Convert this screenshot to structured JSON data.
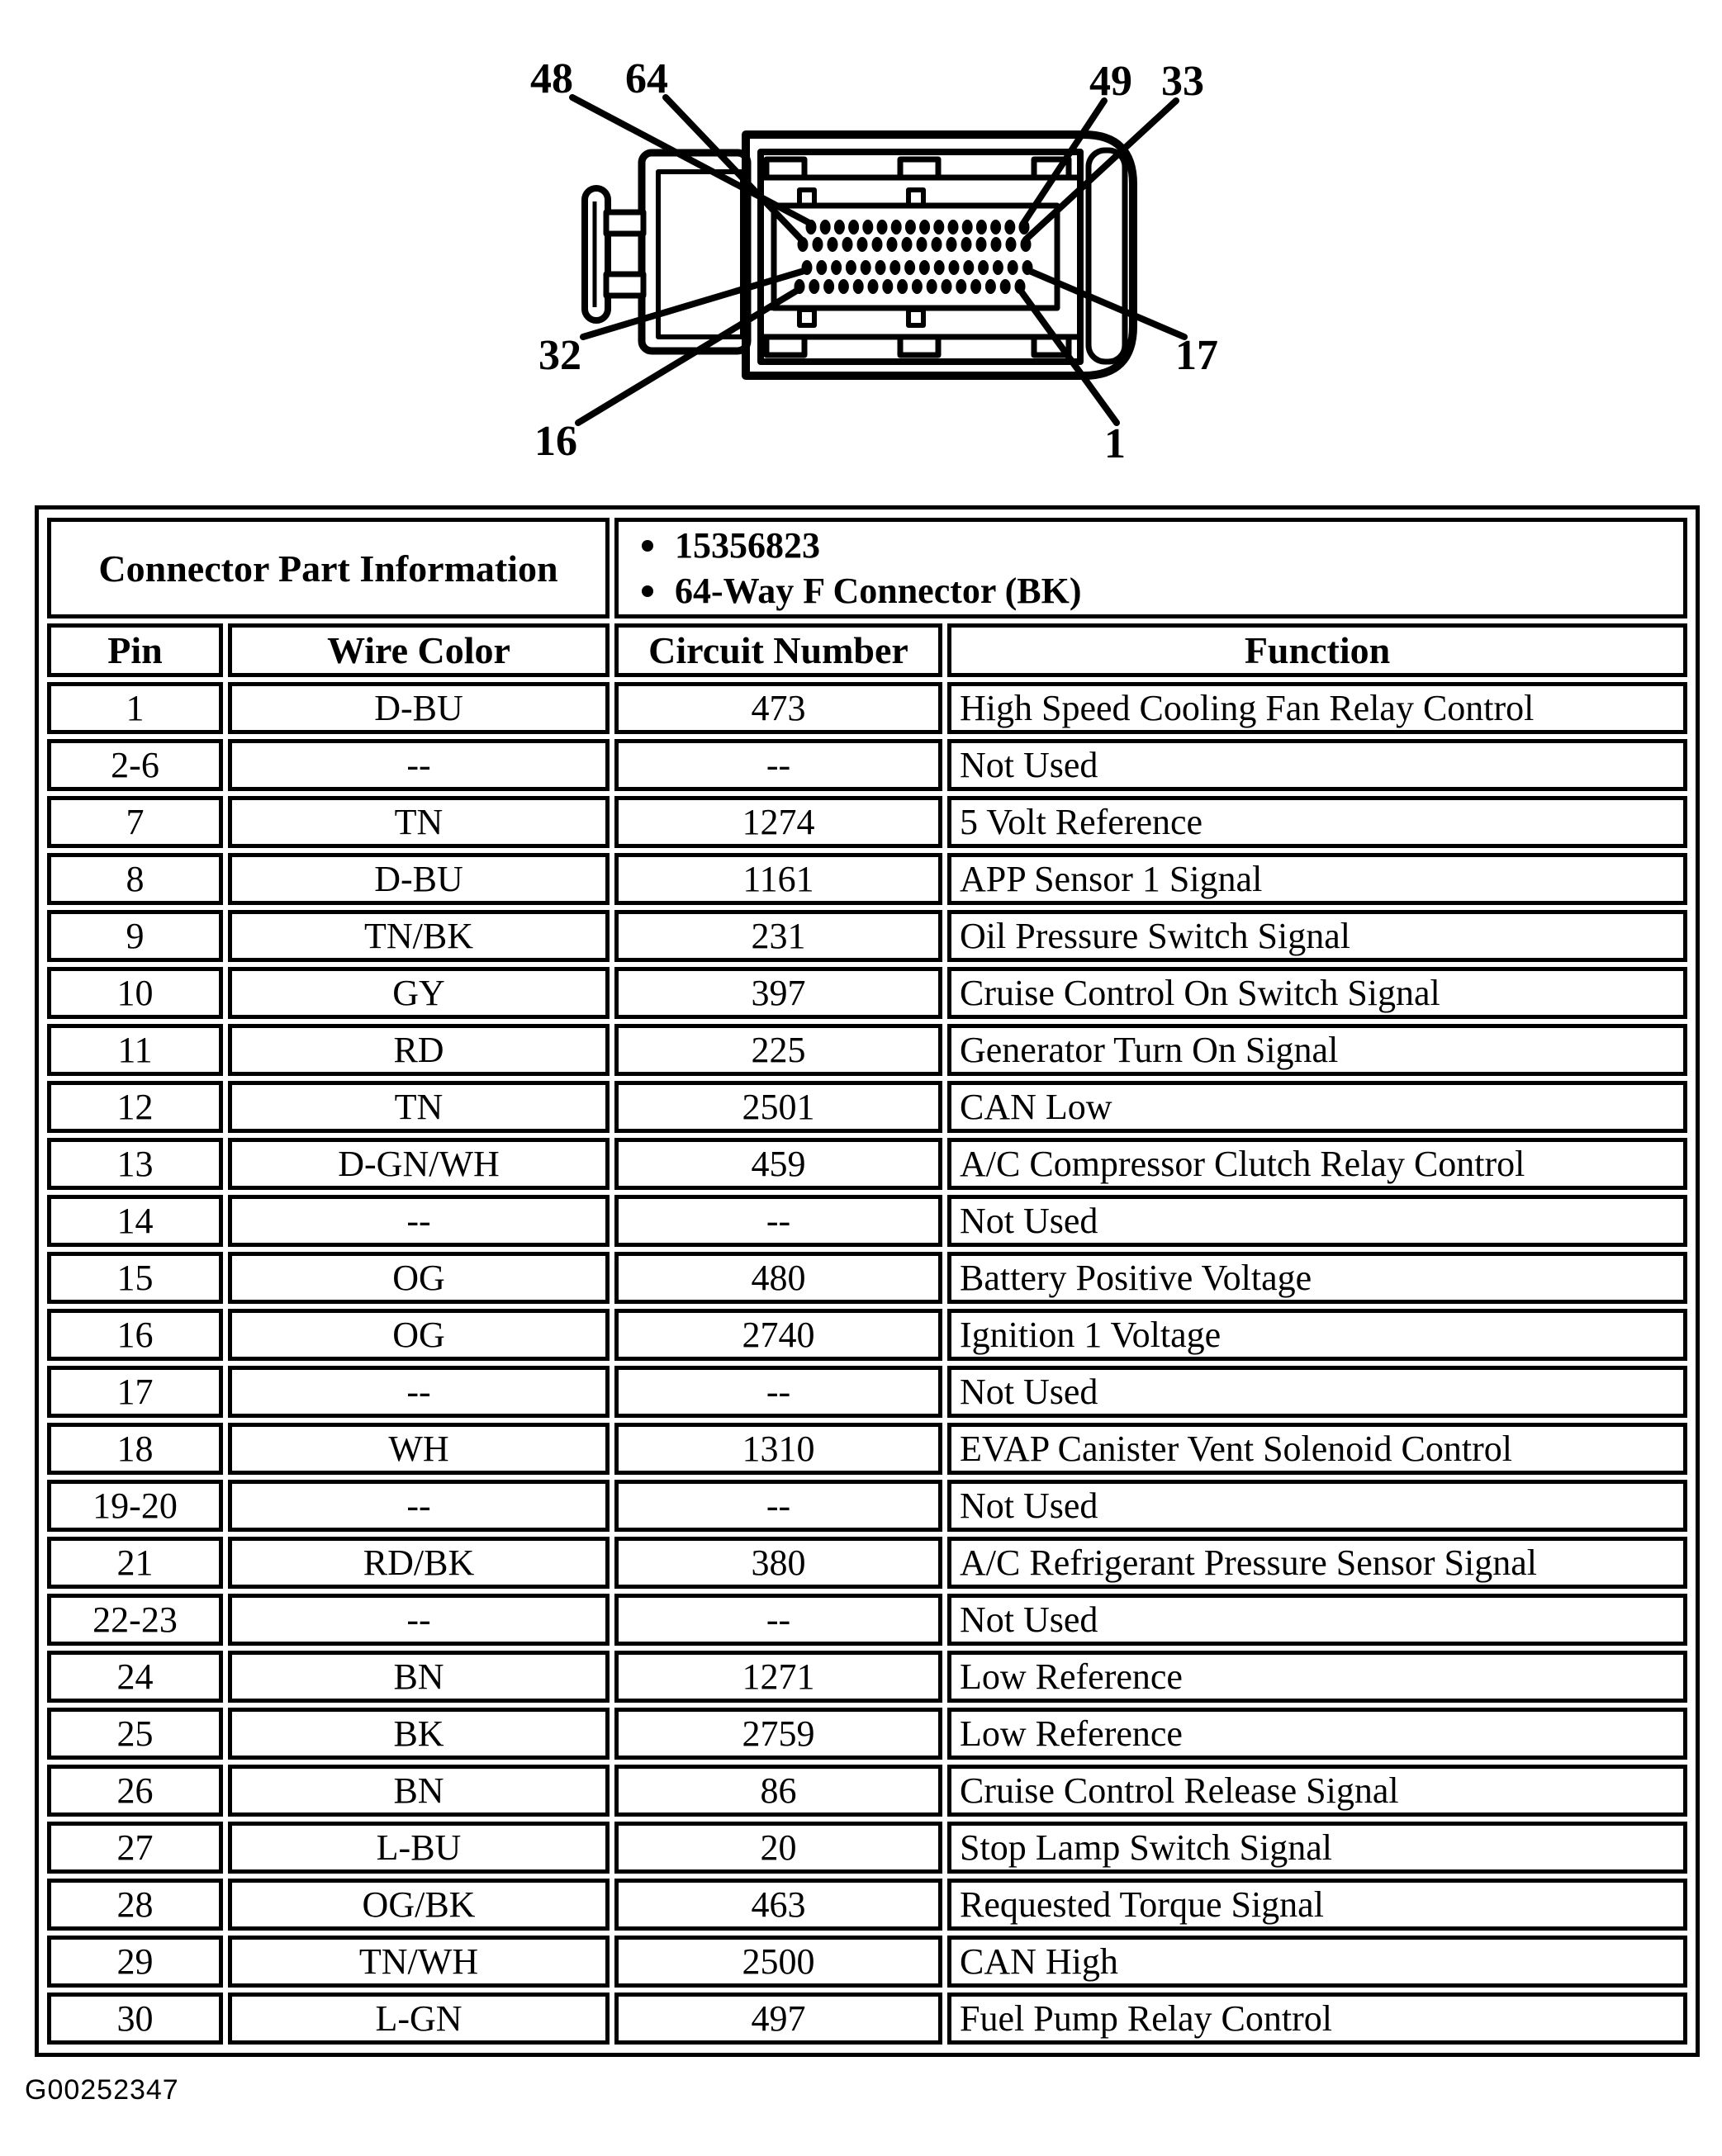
{
  "diagram": {
    "callouts": [
      {
        "label": "48"
      },
      {
        "label": "64"
      },
      {
        "label": "49"
      },
      {
        "label": "33"
      },
      {
        "label": "32"
      },
      {
        "label": "17"
      },
      {
        "label": "16"
      },
      {
        "label": "1"
      }
    ],
    "pin_rows": 4,
    "pins_per_row": 16
  },
  "table": {
    "part_info_header": "Connector Part Information",
    "part_bullets": [
      "15356823",
      "64-Way F Connector (BK)"
    ],
    "columns": [
      "Pin",
      "Wire Color",
      "Circuit Number",
      "Function"
    ],
    "rows": [
      [
        "1",
        "D-BU",
        "473",
        "High Speed Cooling Fan Relay Control"
      ],
      [
        "2-6",
        "--",
        "--",
        "Not Used"
      ],
      [
        "7",
        "TN",
        "1274",
        "5 Volt Reference"
      ],
      [
        "8",
        "D-BU",
        "1161",
        "APP Sensor 1 Signal"
      ],
      [
        "9",
        "TN/BK",
        "231",
        "Oil Pressure Switch Signal"
      ],
      [
        "10",
        "GY",
        "397",
        "Cruise Control On Switch Signal"
      ],
      [
        "11",
        "RD",
        "225",
        "Generator Turn On Signal"
      ],
      [
        "12",
        "TN",
        "2501",
        "CAN Low"
      ],
      [
        "13",
        "D-GN/WH",
        "459",
        "A/C Compressor Clutch Relay Control"
      ],
      [
        "14",
        "--",
        "--",
        "Not Used"
      ],
      [
        "15",
        "OG",
        "480",
        "Battery Positive Voltage"
      ],
      [
        "16",
        "OG",
        "2740",
        "Ignition 1 Voltage"
      ],
      [
        "17",
        "--",
        "--",
        "Not Used"
      ],
      [
        "18",
        "WH",
        "1310",
        "EVAP Canister Vent Solenoid Control"
      ],
      [
        "19-20",
        "--",
        "--",
        "Not Used"
      ],
      [
        "21",
        "RD/BK",
        "380",
        "A/C Refrigerant Pressure Sensor Signal"
      ],
      [
        "22-23",
        "--",
        "--",
        "Not Used"
      ],
      [
        "24",
        "BN",
        "1271",
        "Low Reference"
      ],
      [
        "25",
        "BK",
        "2759",
        "Low Reference"
      ],
      [
        "26",
        "BN",
        "86",
        "Cruise Control Release Signal"
      ],
      [
        "27",
        "L-BU",
        "20",
        "Stop Lamp Switch Signal"
      ],
      [
        "28",
        "OG/BK",
        "463",
        "Requested Torque Signal"
      ],
      [
        "29",
        "TN/WH",
        "2500",
        "CAN High"
      ],
      [
        "30",
        "L-GN",
        "497",
        "Fuel Pump Relay Control"
      ]
    ]
  },
  "footer": {
    "figure_id": "G00252347"
  },
  "colors": {
    "ink": "#000000",
    "paper": "#ffffff"
  }
}
